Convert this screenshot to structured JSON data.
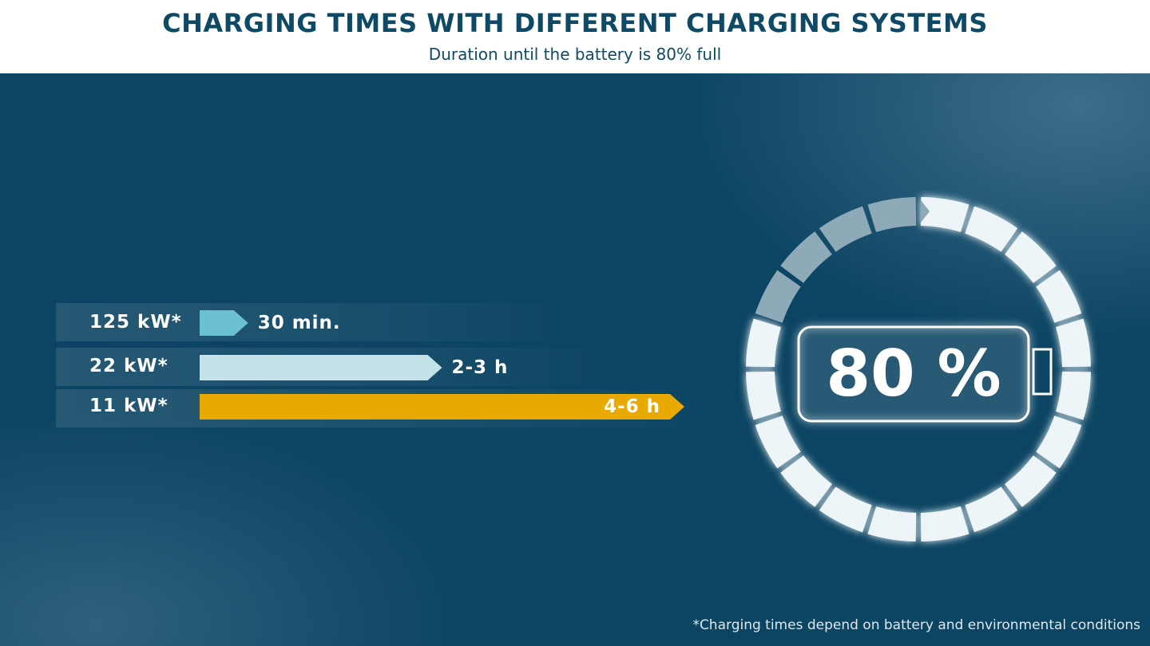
{
  "header": {
    "title": "CHARGING TIMES WITH DIFFERENT CHARGING SYSTEMS",
    "subtitle": "Duration until the battery is 80% full"
  },
  "chart_data": {
    "type": "bar",
    "orientation": "horizontal",
    "categories": [
      "125 kW*",
      "22 kW*",
      "11 kW*"
    ],
    "values_text": [
      "30 min.",
      "2-3 h",
      "4-6 h"
    ],
    "values_hours": [
      0.5,
      2.5,
      5
    ],
    "colors": [
      "#6cc0d2",
      "#c4e2ea",
      "#e8a901"
    ]
  },
  "gauge": {
    "percent_label": "80 %",
    "level": 0.8,
    "segments": 20,
    "filled_color": "#eef5f8",
    "empty_color": "#8ea9b7"
  },
  "footnote": "*Charging times depend on battery and environmental conditions"
}
